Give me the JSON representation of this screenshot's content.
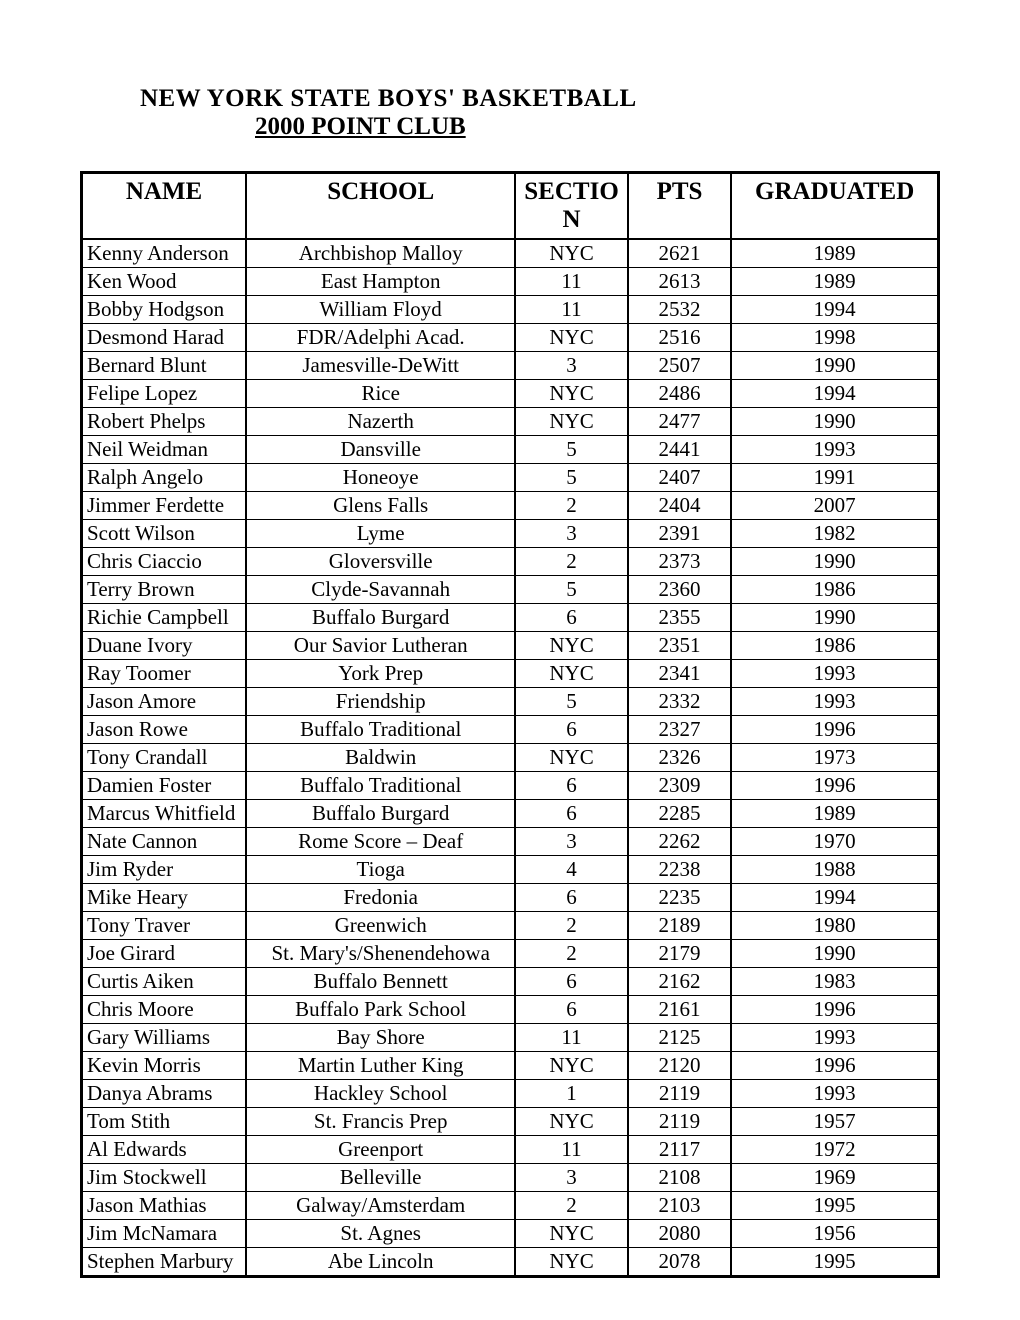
{
  "heading": {
    "line1": "NEW YORK STATE BOYS' BASKETBALL",
    "line2": "2000 POINT CLUB"
  },
  "table": {
    "type": "table",
    "background_color": "#ffffff",
    "border_color": "#000000",
    "header_fontsize": 25,
    "cell_fontsize": 21,
    "columns": [
      {
        "label": "NAME",
        "align": "left"
      },
      {
        "label": "SCHOOL",
        "align": "center"
      },
      {
        "label": "SECTION",
        "align": "center"
      },
      {
        "label": "PTS",
        "align": "center"
      },
      {
        "label": "GRADUATED",
        "align": "center"
      }
    ],
    "rows": [
      [
        "Kenny Anderson",
        "Archbishop Malloy",
        "NYC",
        "2621",
        "1989"
      ],
      [
        "Ken Wood",
        "East Hampton",
        "11",
        "2613",
        "1989"
      ],
      [
        "Bobby Hodgson",
        "William Floyd",
        "11",
        "2532",
        "1994"
      ],
      [
        "Desmond Harad",
        "FDR/Adelphi Acad.",
        "NYC",
        "2516",
        "1998"
      ],
      [
        "Bernard Blunt",
        "Jamesville-DeWitt",
        "3",
        "2507",
        "1990"
      ],
      [
        "Felipe Lopez",
        "Rice",
        "NYC",
        "2486",
        "1994"
      ],
      [
        "Robert Phelps",
        "Nazerth",
        "NYC",
        "2477",
        "1990"
      ],
      [
        "Neil Weidman",
        "Dansville",
        "5",
        "2441",
        "1993"
      ],
      [
        "Ralph Angelo",
        "Honeoye",
        "5",
        "2407",
        "1991"
      ],
      [
        "Jimmer Ferdette",
        "Glens Falls",
        "2",
        "2404",
        "2007"
      ],
      [
        "Scott Wilson",
        "Lyme",
        "3",
        "2391",
        "1982"
      ],
      [
        "Chris Ciaccio",
        "Gloversville",
        "2",
        "2373",
        "1990"
      ],
      [
        "Terry Brown",
        "Clyde-Savannah",
        "5",
        "2360",
        "1986"
      ],
      [
        "Richie Campbell",
        "Buffalo Burgard",
        "6",
        "2355",
        "1990"
      ],
      [
        "Duane Ivory",
        "Our Savior Lutheran",
        "NYC",
        "2351",
        "1986"
      ],
      [
        "Ray Toomer",
        "York Prep",
        "NYC",
        "2341",
        "1993"
      ],
      [
        "Jason Amore",
        "Friendship",
        "5",
        "2332",
        "1993"
      ],
      [
        "Jason Rowe",
        "Buffalo Traditional",
        "6",
        "2327",
        "1996"
      ],
      [
        "Tony Crandall",
        "Baldwin",
        "NYC",
        "2326",
        "1973"
      ],
      [
        "Damien Foster",
        "Buffalo Traditional",
        "6",
        "2309",
        "1996"
      ],
      [
        "Marcus Whitfield",
        "Buffalo Burgard",
        "6",
        "2285",
        "1989"
      ],
      [
        "Nate Cannon",
        "Rome Score – Deaf",
        "3",
        "2262",
        "1970"
      ],
      [
        "Jim Ryder",
        "Tioga",
        "4",
        "2238",
        "1988"
      ],
      [
        "Mike Heary",
        "Fredonia",
        "6",
        "2235",
        "1994"
      ],
      [
        "Tony Traver",
        "Greenwich",
        "2",
        "2189",
        "1980"
      ],
      [
        "Joe Girard",
        "St. Mary's/Shenendehowa",
        "2",
        "2179",
        "1990"
      ],
      [
        "Curtis Aiken",
        "Buffalo Bennett",
        "6",
        "2162",
        "1983"
      ],
      [
        "Chris Moore",
        "Buffalo Park School",
        "6",
        "2161",
        "1996"
      ],
      [
        "Gary Williams",
        "Bay Shore",
        "11",
        "2125",
        "1993"
      ],
      [
        "Kevin Morris",
        "Martin Luther King",
        "NYC",
        "2120",
        "1996"
      ],
      [
        "Danya Abrams",
        "Hackley School",
        "1",
        "2119",
        "1993"
      ],
      [
        "Tom Stith",
        "St. Francis Prep",
        "NYC",
        "2119",
        "1957"
      ],
      [
        "Al Edwards",
        "Greenport",
        "11",
        "2117",
        "1972"
      ],
      [
        "Jim Stockwell",
        "Belleville",
        "3",
        "2108",
        "1969"
      ],
      [
        "Jason Mathias",
        "Galway/Amsterdam",
        "2",
        "2103",
        "1995"
      ],
      [
        "Jim McNamara",
        "St. Agnes",
        "NYC",
        "2080",
        "1956"
      ],
      [
        "Stephen Marbury",
        "Abe Lincoln",
        "NYC",
        "2078",
        "1995"
      ]
    ]
  }
}
